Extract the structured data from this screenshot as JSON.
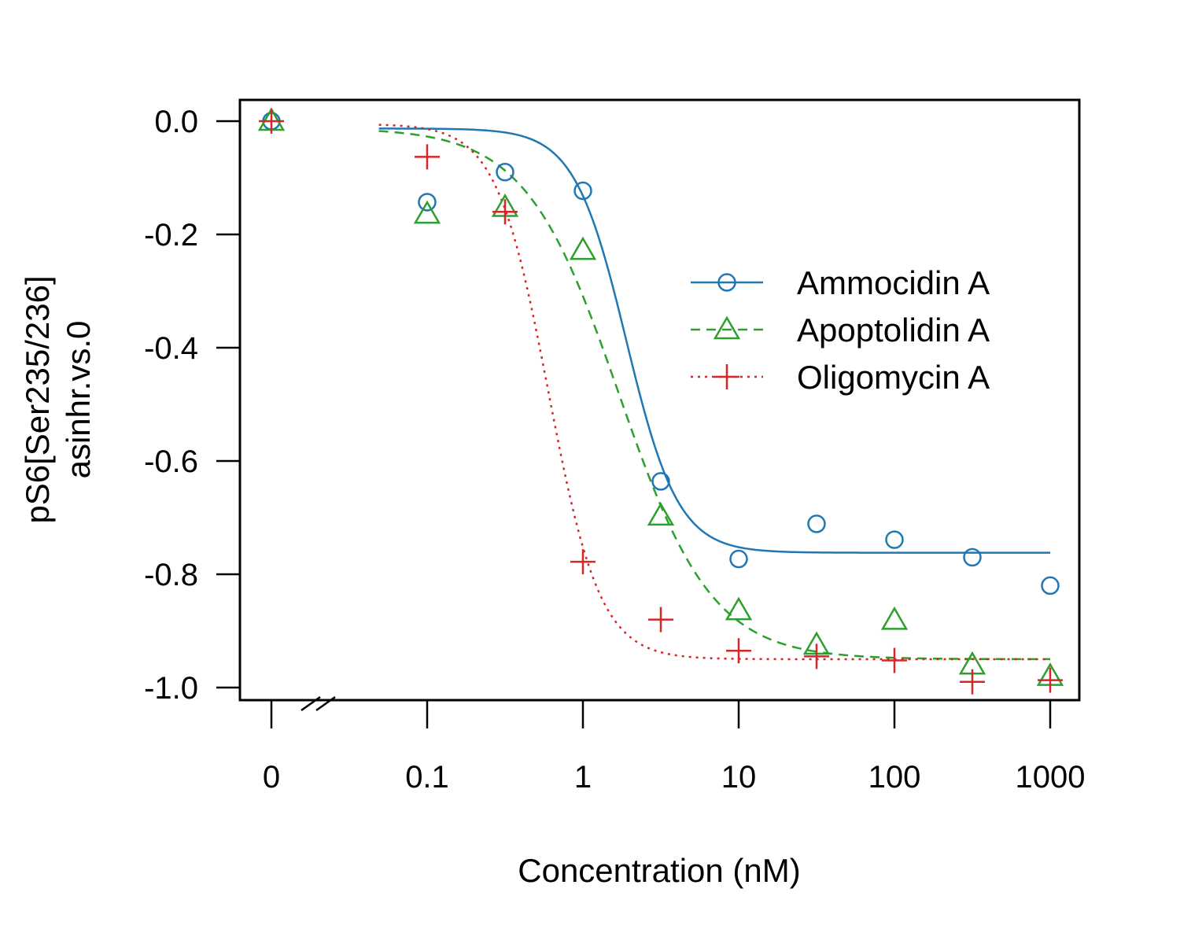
{
  "chart_data": {
    "type": "scatter",
    "xlabel": "Concentration (nM)",
    "ylabel_lines": [
      "pS6[Ser235/236]",
      "asinhr.vs.0"
    ],
    "x_scale": "log10 with axis break at zero",
    "x_ticks": [
      "0",
      "0.1",
      "1",
      "10",
      "100",
      "1000"
    ],
    "y_ticks": [
      "0.0",
      "-0.2",
      "-0.4",
      "-0.6",
      "-0.8",
      "-1.0"
    ],
    "ylim": [
      -1.0,
      0.0
    ],
    "legend_position": "right",
    "series": [
      {
        "name": "Ammocidin A",
        "color": "#1f77b4",
        "marker": "circle",
        "line_style": "solid",
        "x": [
          0,
          0.1,
          0.3162,
          1,
          3.162,
          10,
          31.62,
          100,
          316.2,
          1000
        ],
        "y": [
          0.0,
          -0.143,
          -0.09,
          -0.123,
          -0.636,
          -0.773,
          -0.711,
          -0.739,
          -0.77,
          -0.82
        ],
        "fit": {
          "top": -0.013,
          "bottom": -0.762,
          "ec50": 1.9,
          "hill": 2.6
        }
      },
      {
        "name": "Apoptolidin A",
        "color": "#2ca02c",
        "marker": "triangle",
        "line_style": "dashed",
        "x": [
          0,
          0.1,
          0.3162,
          1,
          3.162,
          10,
          31.62,
          100,
          316.2,
          1000
        ],
        "y": [
          0.0,
          -0.164,
          -0.152,
          -0.228,
          -0.697,
          -0.864,
          -0.925,
          -0.881,
          -0.96,
          -0.98
        ],
        "fit": {
          "top": -0.012,
          "bottom": -0.95,
          "ec50": 1.7,
          "hill": 1.45
        }
      },
      {
        "name": "Oligomycin A",
        "color": "#d62728",
        "marker": "plus",
        "line_style": "dotted",
        "x": [
          0,
          0.1,
          0.3162,
          1,
          3.162,
          10,
          31.62,
          100,
          316.2,
          1000
        ],
        "y": [
          0.0,
          -0.063,
          -0.16,
          -0.778,
          -0.88,
          -0.935,
          -0.945,
          -0.952,
          -0.99,
          -0.987
        ],
        "fit": {
          "top": -0.005,
          "bottom": -0.95,
          "ec50": 0.6,
          "hill": 2.6
        }
      }
    ]
  }
}
